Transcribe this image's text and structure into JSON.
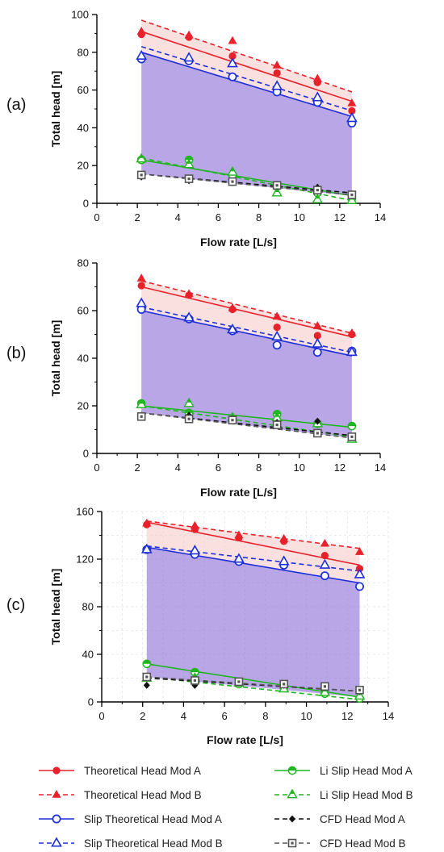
{
  "legend": {
    "position": "bottom",
    "columns": 2,
    "items": [
      {
        "label": "Theoretical Head Mod A",
        "series": "th_a"
      },
      {
        "label": "Li Slip Head Mod A",
        "series": "li_a"
      },
      {
        "label": "Theoretical Head Mod B",
        "series": "th_b"
      },
      {
        "label": "Li Slip Head Mod B",
        "series": "li_b"
      },
      {
        "label": "Slip Theoretical Head Mod A",
        "series": "sl_a"
      },
      {
        "label": "CFD Head Mod A",
        "series": "cfd_a"
      },
      {
        "label": "Slip Theoretical Head Mod B",
        "series": "sl_b"
      },
      {
        "label": "CFD Head Mod B",
        "series": "cfd_b"
      }
    ]
  },
  "series_styles": {
    "th_a": {
      "color": "#e8212b",
      "marker": "filled-circle",
      "line": "solid"
    },
    "th_b": {
      "color": "#e8212b",
      "marker": "filled-triangle",
      "line": "dashed"
    },
    "sl_a": {
      "color": "#1d2fd8",
      "marker": "open-circle",
      "line": "solid"
    },
    "sl_b": {
      "color": "#1d2fd8",
      "marker": "open-triangle",
      "line": "dashed"
    },
    "li_a": {
      "color": "#22b522",
      "marker": "half-circle",
      "line": "solid"
    },
    "li_b": {
      "color": "#22b522",
      "marker": "half-triangle",
      "line": "dashed"
    },
    "cfd_a": {
      "color": "#111111",
      "marker": "filled-diamond",
      "line": "dashed"
    },
    "cfd_b": {
      "color": "#555555",
      "marker": "open-square",
      "line": "dashed"
    }
  },
  "fills": {
    "upper_band": "#f6c9c4",
    "middle_band": "#8d6fd6"
  },
  "chart_data": [
    {
      "panel_label": "(a)",
      "type": "scatter",
      "xlabel": "Flow rate [L/s]",
      "ylabel": "Total head [m]",
      "xlim": [
        0,
        14
      ],
      "ylim": [
        0,
        100
      ],
      "xticks": [
        0,
        2,
        4,
        6,
        8,
        10,
        12,
        14
      ],
      "yticks": [
        0,
        20,
        40,
        60,
        80,
        100
      ],
      "grid": false,
      "x": [
        2.2,
        4.55,
        6.7,
        8.9,
        10.9,
        12.6
      ],
      "series": [
        {
          "key": "th_a",
          "values": [
            89.5,
            88,
            78,
            69,
            64,
            49
          ],
          "fit": [
            91,
            54
          ]
        },
        {
          "key": "th_b",
          "values": [
            91,
            89,
            86,
            73,
            66,
            53
          ],
          "fit": [
            97,
            59
          ]
        },
        {
          "key": "sl_a",
          "values": [
            76.5,
            75.5,
            67,
            59,
            53.5,
            42.5
          ],
          "fit": [
            80,
            46
          ]
        },
        {
          "key": "sl_b",
          "values": [
            78,
            77,
            74,
            62,
            56,
            45
          ],
          "fit": [
            83,
            49
          ]
        },
        {
          "key": "li_a",
          "values": [
            23,
            23,
            15,
            9,
            5.5,
            2.5
          ],
          "fit": [
            23,
            4
          ]
        },
        {
          "key": "li_b",
          "values": [
            23.5,
            20.5,
            16.5,
            5.5,
            2,
            1.5
          ],
          "fit": [
            24,
            1.5
          ]
        },
        {
          "key": "cfd_a",
          "values": [
            14,
            12,
            11,
            10,
            8.5,
            5
          ],
          "fit": [
            15.5,
            5.5
          ]
        },
        {
          "key": "cfd_b",
          "values": [
            15,
            13,
            11.5,
            9.5,
            7,
            4.5
          ],
          "fit": [
            15.5,
            4.5
          ]
        }
      ]
    },
    {
      "panel_label": "(b)",
      "type": "scatter",
      "xlabel": "Flow rate [L/s]",
      "ylabel": "Total head [m]",
      "xlim": [
        0,
        14
      ],
      "ylim": [
        0,
        80
      ],
      "xticks": [
        0,
        2,
        4,
        6,
        8,
        10,
        12,
        14
      ],
      "yticks": [
        0,
        20,
        40,
        60,
        80
      ],
      "grid": false,
      "x": [
        2.2,
        4.55,
        6.7,
        8.9,
        10.9,
        12.6
      ],
      "series": [
        {
          "key": "th_a",
          "values": [
            70.5,
            66.5,
            60.5,
            53,
            49.5,
            50
          ],
          "fit": [
            70,
            49
          ]
        },
        {
          "key": "th_b",
          "values": [
            73.5,
            67,
            61,
            57.5,
            53.5,
            50.5
          ],
          "fit": [
            72.5,
            50.5
          ]
        },
        {
          "key": "sl_a",
          "values": [
            60.5,
            56.5,
            51.5,
            45.5,
            42.5,
            43
          ],
          "fit": [
            60,
            41
          ]
        },
        {
          "key": "sl_b",
          "values": [
            63,
            57,
            52,
            49,
            46,
            42.5
          ],
          "fit": [
            61.5,
            42.5
          ]
        },
        {
          "key": "li_a",
          "values": [
            21,
            17,
            14.5,
            16.5,
            12.5,
            11.5
          ],
          "fit": [
            20,
            11
          ]
        },
        {
          "key": "li_b",
          "values": [
            20.5,
            21,
            15,
            15,
            12.5,
            6
          ],
          "fit": [
            20,
            7
          ]
        },
        {
          "key": "cfd_a",
          "values": [
            16,
            16,
            14.5,
            13,
            13.5,
            7
          ],
          "fit": [
            17,
            7.5
          ]
        },
        {
          "key": "cfd_b",
          "values": [
            15.5,
            14.5,
            14,
            12,
            8.5,
            7
          ],
          "fit": [
            17,
            6.5
          ]
        }
      ]
    },
    {
      "panel_label": "(c)",
      "type": "scatter",
      "xlabel": "Flow rate [L/s]",
      "ylabel": "Total head [m]",
      "xlim": [
        0,
        14
      ],
      "ylim": [
        0,
        160
      ],
      "xticks": [
        0,
        2,
        4,
        6,
        8,
        10,
        12,
        14
      ],
      "yticks": [
        0,
        40,
        80,
        120,
        160
      ],
      "grid": true,
      "x": [
        2.2,
        4.55,
        6.7,
        8.9,
        10.9,
        12.6
      ],
      "series": [
        {
          "key": "th_a",
          "values": [
            149,
            145,
            138,
            135,
            123,
            112
          ],
          "fit": [
            151,
            115
          ]
        },
        {
          "key": "th_b",
          "values": [
            150,
            148,
            140,
            137,
            133,
            126
          ],
          "fit": [
            152,
            129
          ]
        },
        {
          "key": "sl_a",
          "values": [
            128,
            124,
            118,
            115,
            106,
            97
          ],
          "fit": [
            130,
            100
          ]
        },
        {
          "key": "sl_b",
          "values": [
            128,
            127,
            120,
            118,
            115,
            107
          ],
          "fit": [
            131,
            110
          ]
        },
        {
          "key": "li_a",
          "values": [
            32,
            25,
            15,
            12,
            7,
            3
          ],
          "fit": [
            32,
            4
          ]
        },
        {
          "key": "li_b",
          "values": [
            20,
            20,
            16,
            11,
            8,
            5
          ],
          "fit": [
            21,
            2
          ]
        },
        {
          "key": "cfd_a",
          "values": [
            14,
            14,
            16,
            14,
            13,
            9
          ],
          "fit": [
            20,
            9
          ]
        },
        {
          "key": "cfd_b",
          "values": [
            21,
            18,
            17,
            15,
            13,
            10
          ],
          "fit": [
            21,
            9
          ]
        }
      ]
    }
  ]
}
